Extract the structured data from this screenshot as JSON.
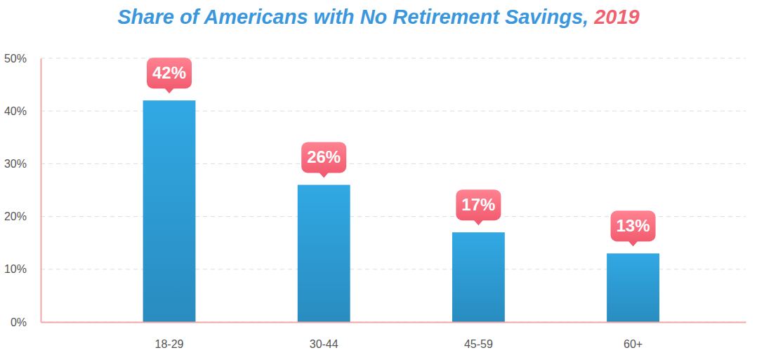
{
  "chart_data": {
    "type": "bar",
    "title": "Share of Americans with No Retirement Savings, 2019",
    "categories": [
      "18-29",
      "30-44",
      "45-59",
      "60+"
    ],
    "values": [
      42,
      26,
      17,
      13
    ],
    "value_labels": [
      "42%",
      "26%",
      "17%",
      "13%"
    ],
    "color": "#2e9fd8",
    "ylim": [
      0,
      50
    ],
    "yticks": [
      {
        "value": 0,
        "label": "0%"
      },
      {
        "value": 10,
        "label": "10%"
      },
      {
        "value": 20,
        "label": "20%"
      },
      {
        "value": 30,
        "label": "30%"
      },
      {
        "value": 40,
        "label": "40%"
      },
      {
        "value": 50,
        "label": "50%"
      }
    ],
    "grid": true,
    "data_labels": true
  }
}
